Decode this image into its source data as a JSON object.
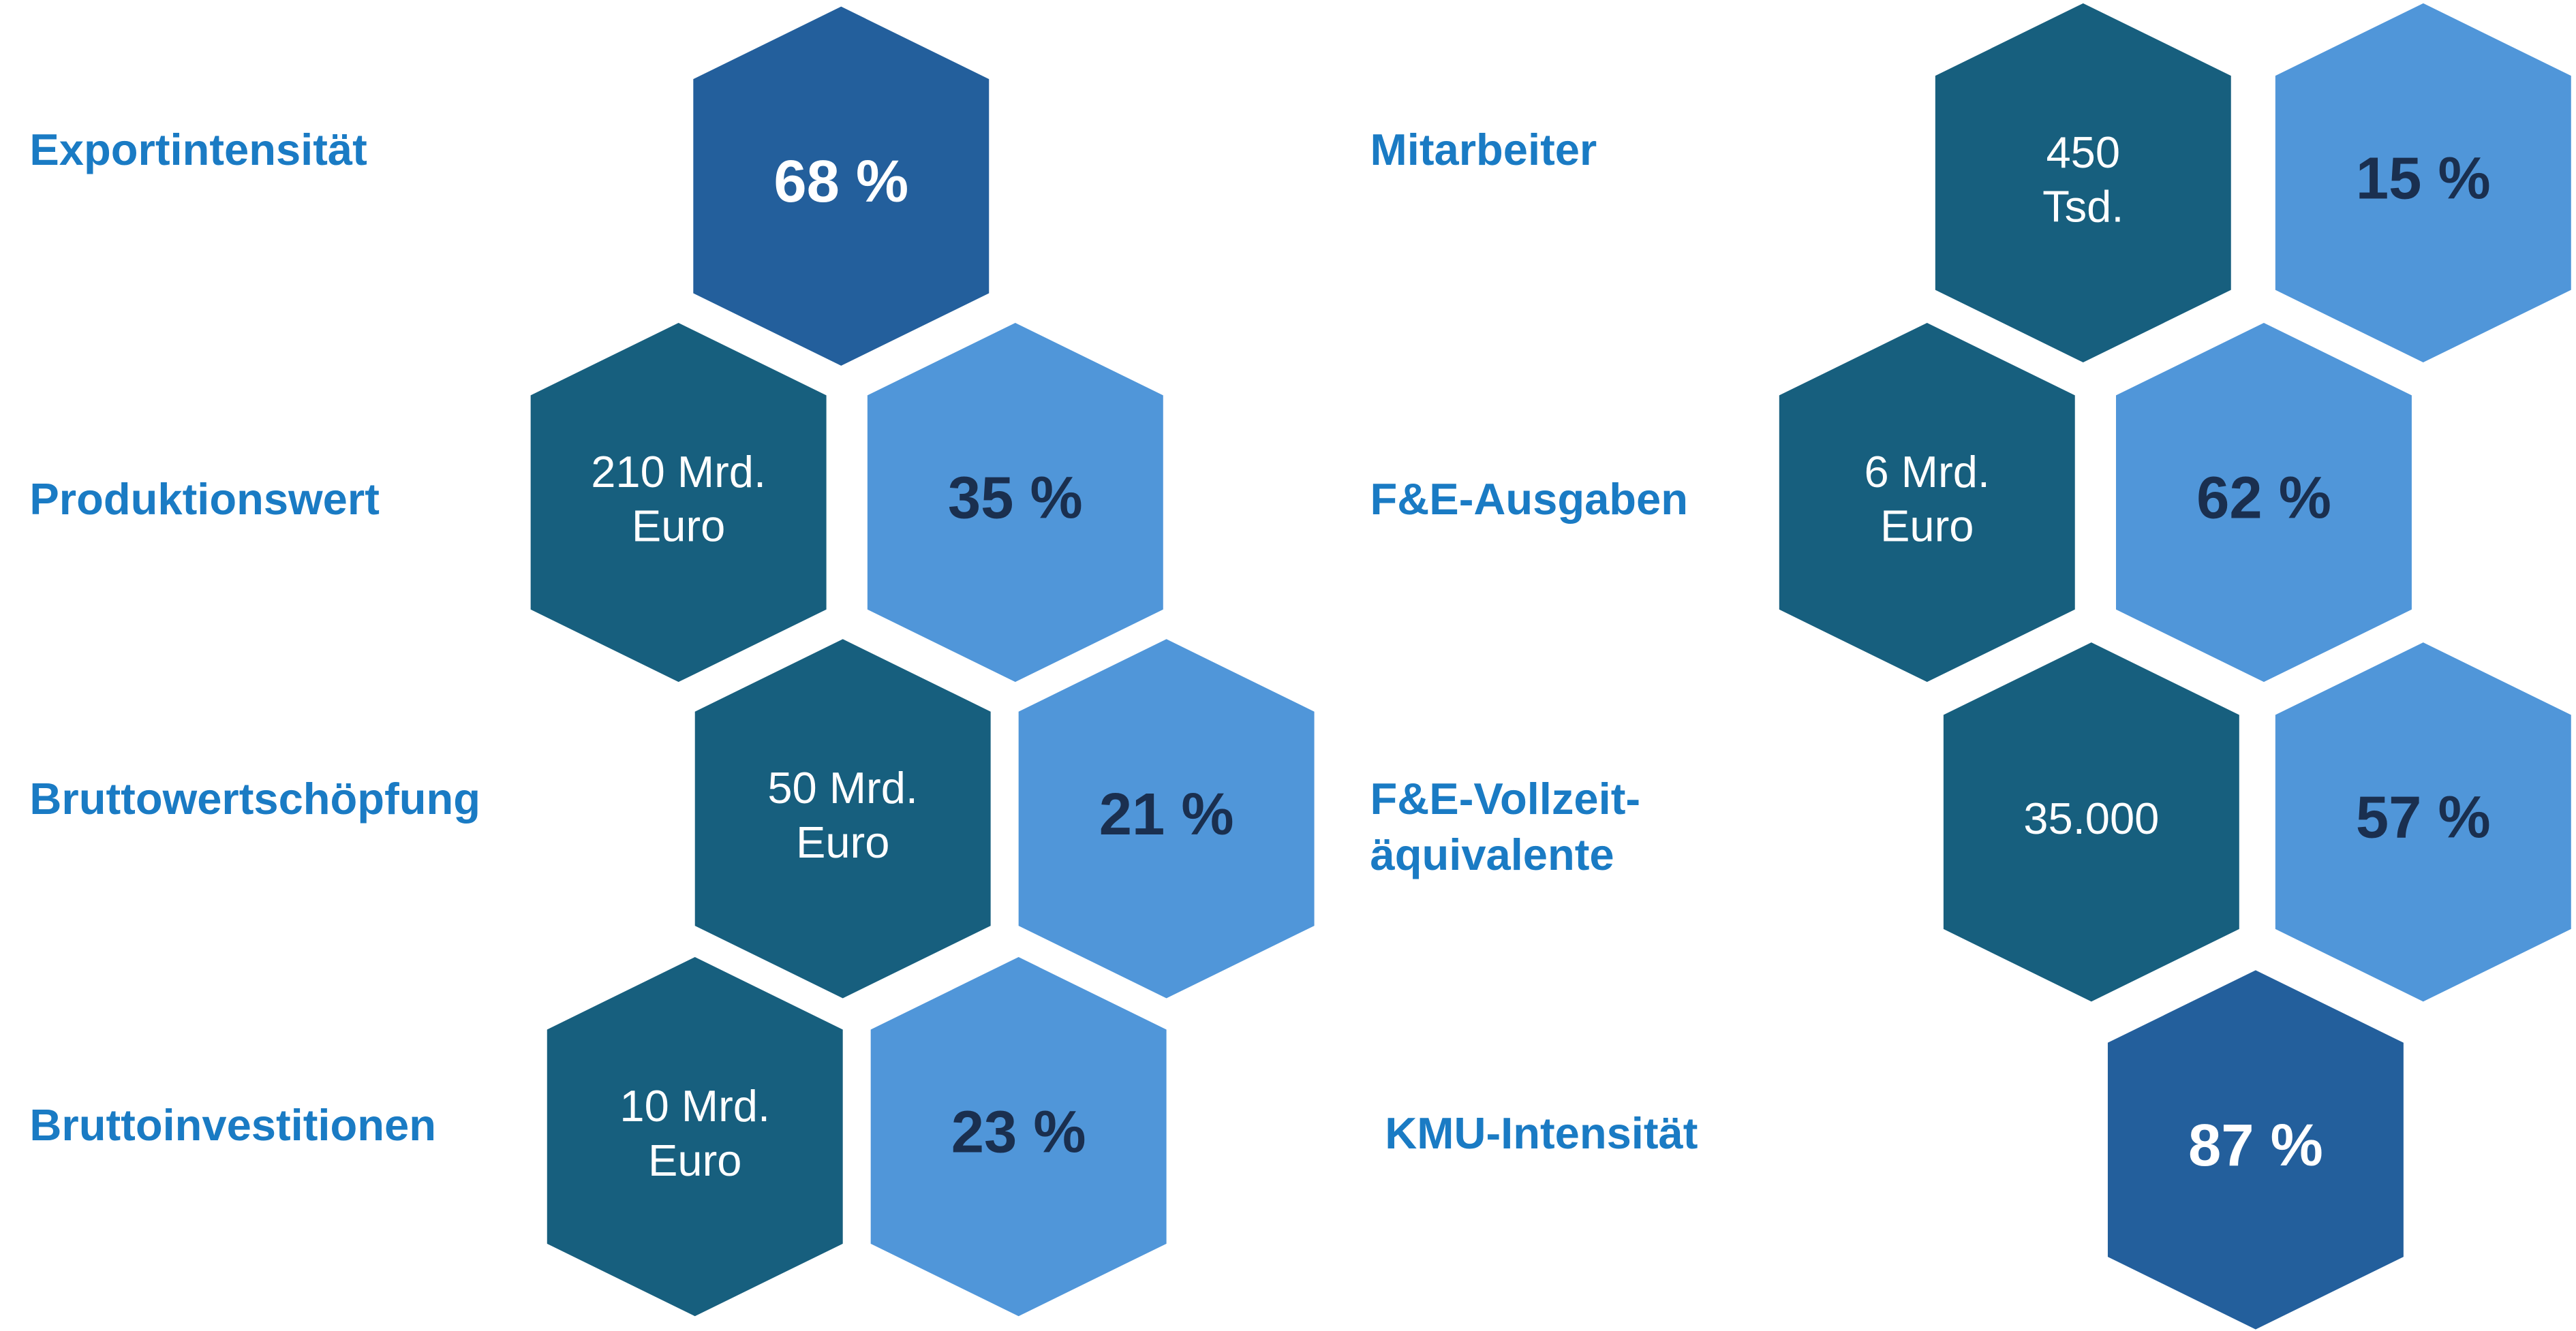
{
  "items": [
    {
      "label": [
        "Exportintensität"
      ],
      "hexes": [
        {
          "lines": [
            "68 %"
          ]
        }
      ]
    },
    {
      "label": [
        "Produktionswert"
      ],
      "hexes": [
        {
          "lines": [
            "210 Mrd.",
            "Euro"
          ]
        },
        {
          "lines": [
            "35 %"
          ]
        }
      ]
    },
    {
      "label": [
        "Bruttowertschöpfung"
      ],
      "hexes": [
        {
          "lines": [
            "50 Mrd.",
            "Euro"
          ]
        },
        {
          "lines": [
            "21 %"
          ]
        }
      ]
    },
    {
      "label": [
        "Bruttoinvestitionen"
      ],
      "hexes": [
        {
          "lines": [
            "10 Mrd.",
            "Euro"
          ]
        },
        {
          "lines": [
            "23 %"
          ]
        }
      ]
    },
    {
      "label": [
        "Mitarbeiter"
      ],
      "hexes": [
        {
          "lines": [
            "450",
            "Tsd."
          ]
        },
        {
          "lines": [
            "15 %"
          ]
        }
      ]
    },
    {
      "label": [
        "F&E-Ausgaben"
      ],
      "hexes": [
        {
          "lines": [
            "6 Mrd.",
            "Euro"
          ]
        },
        {
          "lines": [
            "62 %"
          ]
        }
      ]
    },
    {
      "label": [
        "F&E-Vollzeit-",
        "äquivalente"
      ],
      "hexes": [
        {
          "lines": [
            "35.000"
          ]
        },
        {
          "lines": [
            "57 %"
          ]
        }
      ]
    },
    {
      "label": [
        "KMU-Intensität"
      ],
      "hexes": [
        {
          "lines": [
            "87 %"
          ]
        }
      ]
    }
  ]
}
